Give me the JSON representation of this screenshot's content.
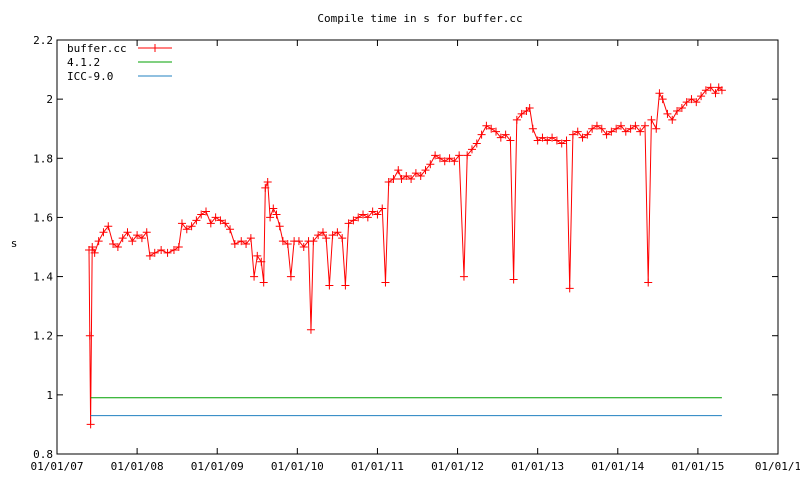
{
  "chart_data": {
    "type": "line",
    "title": "Compile time in s for buffer.cc",
    "xlabel": "",
    "ylabel": "s",
    "ylim": [
      0.8,
      2.2
    ],
    "yticks": [
      "0.8",
      "1",
      "1.2",
      "1.4",
      "1.6",
      "1.8",
      "2",
      "2.2"
    ],
    "xlim": [
      2007.0,
      2016.0
    ],
    "xticks": [
      {
        "label": "01/01/07",
        "x": 2007.0
      },
      {
        "label": "01/01/08",
        "x": 2008.0
      },
      {
        "label": "01/01/09",
        "x": 2009.0
      },
      {
        "label": "01/01/10",
        "x": 2010.0
      },
      {
        "label": "01/01/11",
        "x": 2011.0
      },
      {
        "label": "01/01/12",
        "x": 2012.0
      },
      {
        "label": "01/01/13",
        "x": 2013.0
      },
      {
        "label": "01/01/14",
        "x": 2014.0
      },
      {
        "label": "01/01/15",
        "x": 2015.0
      },
      {
        "label": "01/01/1",
        "x": 2016.0
      }
    ],
    "grid": false,
    "legend": "top-left",
    "series": [
      {
        "name": "buffer.cc",
        "color": "#ff0000",
        "marker": "plus",
        "points": [
          [
            2007.4,
            1.49
          ],
          [
            2007.41,
            1.2
          ],
          [
            2007.42,
            0.9
          ],
          [
            2007.44,
            1.5
          ],
          [
            2007.47,
            1.48
          ],
          [
            2007.52,
            1.52
          ],
          [
            2007.58,
            1.55
          ],
          [
            2007.64,
            1.57
          ],
          [
            2007.7,
            1.51
          ],
          [
            2007.76,
            1.5
          ],
          [
            2007.82,
            1.53
          ],
          [
            2007.88,
            1.55
          ],
          [
            2007.94,
            1.52
          ],
          [
            2008.0,
            1.54
          ],
          [
            2008.06,
            1.53
          ],
          [
            2008.12,
            1.55
          ],
          [
            2008.16,
            1.47
          ],
          [
            2008.22,
            1.48
          ],
          [
            2008.3,
            1.49
          ],
          [
            2008.38,
            1.48
          ],
          [
            2008.46,
            1.49
          ],
          [
            2008.52,
            1.5
          ],
          [
            2008.56,
            1.58
          ],
          [
            2008.62,
            1.56
          ],
          [
            2008.68,
            1.57
          ],
          [
            2008.74,
            1.59
          ],
          [
            2008.8,
            1.61
          ],
          [
            2008.86,
            1.62
          ],
          [
            2008.92,
            1.58
          ],
          [
            2008.98,
            1.6
          ],
          [
            2009.04,
            1.59
          ],
          [
            2009.1,
            1.58
          ],
          [
            2009.16,
            1.56
          ],
          [
            2009.22,
            1.51
          ],
          [
            2009.3,
            1.52
          ],
          [
            2009.36,
            1.51
          ],
          [
            2009.42,
            1.53
          ],
          [
            2009.46,
            1.4
          ],
          [
            2009.5,
            1.47
          ],
          [
            2009.55,
            1.45
          ],
          [
            2009.58,
            1.38
          ],
          [
            2009.6,
            1.7
          ],
          [
            2009.63,
            1.72
          ],
          [
            2009.66,
            1.6
          ],
          [
            2009.7,
            1.63
          ],
          [
            2009.74,
            1.61
          ],
          [
            2009.78,
            1.57
          ],
          [
            2009.82,
            1.52
          ],
          [
            2009.88,
            1.51
          ],
          [
            2009.92,
            1.4
          ],
          [
            2009.96,
            1.52
          ],
          [
            2010.02,
            1.52
          ],
          [
            2010.08,
            1.5
          ],
          [
            2010.14,
            1.52
          ],
          [
            2010.17,
            1.22
          ],
          [
            2010.2,
            1.52
          ],
          [
            2010.26,
            1.54
          ],
          [
            2010.32,
            1.55
          ],
          [
            2010.36,
            1.53
          ],
          [
            2010.4,
            1.37
          ],
          [
            2010.44,
            1.54
          ],
          [
            2010.5,
            1.55
          ],
          [
            2010.56,
            1.53
          ],
          [
            2010.6,
            1.37
          ],
          [
            2010.64,
            1.58
          ],
          [
            2010.7,
            1.59
          ],
          [
            2010.76,
            1.6
          ],
          [
            2010.82,
            1.61
          ],
          [
            2010.88,
            1.6
          ],
          [
            2010.94,
            1.62
          ],
          [
            2011.0,
            1.61
          ],
          [
            2011.06,
            1.63
          ],
          [
            2011.1,
            1.38
          ],
          [
            2011.14,
            1.72
          ],
          [
            2011.2,
            1.73
          ],
          [
            2011.26,
            1.76
          ],
          [
            2011.3,
            1.73
          ],
          [
            2011.36,
            1.74
          ],
          [
            2011.42,
            1.73
          ],
          [
            2011.48,
            1.75
          ],
          [
            2011.54,
            1.74
          ],
          [
            2011.6,
            1.76
          ],
          [
            2011.66,
            1.78
          ],
          [
            2011.72,
            1.81
          ],
          [
            2011.78,
            1.8
          ],
          [
            2011.84,
            1.79
          ],
          [
            2011.9,
            1.8
          ],
          [
            2011.96,
            1.79
          ],
          [
            2012.02,
            1.81
          ],
          [
            2012.08,
            1.4
          ],
          [
            2012.12,
            1.81
          ],
          [
            2012.18,
            1.83
          ],
          [
            2012.24,
            1.85
          ],
          [
            2012.3,
            1.88
          ],
          [
            2012.36,
            1.91
          ],
          [
            2012.42,
            1.9
          ],
          [
            2012.48,
            1.89
          ],
          [
            2012.54,
            1.87
          ],
          [
            2012.6,
            1.88
          ],
          [
            2012.66,
            1.86
          ],
          [
            2012.7,
            1.39
          ],
          [
            2012.74,
            1.93
          ],
          [
            2012.8,
            1.95
          ],
          [
            2012.86,
            1.96
          ],
          [
            2012.9,
            1.97
          ],
          [
            2012.94,
            1.9
          ],
          [
            2013.0,
            1.86
          ],
          [
            2013.06,
            1.87
          ],
          [
            2013.12,
            1.86
          ],
          [
            2013.18,
            1.87
          ],
          [
            2013.24,
            1.86
          ],
          [
            2013.3,
            1.85
          ],
          [
            2013.36,
            1.86
          ],
          [
            2013.4,
            1.36
          ],
          [
            2013.44,
            1.88
          ],
          [
            2013.5,
            1.89
          ],
          [
            2013.56,
            1.87
          ],
          [
            2013.62,
            1.88
          ],
          [
            2013.68,
            1.9
          ],
          [
            2013.74,
            1.91
          ],
          [
            2013.8,
            1.9
          ],
          [
            2013.86,
            1.88
          ],
          [
            2013.92,
            1.89
          ],
          [
            2013.98,
            1.9
          ],
          [
            2014.04,
            1.91
          ],
          [
            2014.1,
            1.89
          ],
          [
            2014.16,
            1.9
          ],
          [
            2014.22,
            1.91
          ],
          [
            2014.28,
            1.89
          ],
          [
            2014.34,
            1.91
          ],
          [
            2014.38,
            1.38
          ],
          [
            2014.42,
            1.93
          ],
          [
            2014.48,
            1.9
          ],
          [
            2014.52,
            2.02
          ],
          [
            2014.56,
            2.0
          ],
          [
            2014.62,
            1.95
          ],
          [
            2014.68,
            1.93
          ],
          [
            2014.74,
            1.96
          ],
          [
            2014.8,
            1.97
          ],
          [
            2014.86,
            1.99
          ],
          [
            2014.92,
            2.0
          ],
          [
            2014.98,
            1.99
          ],
          [
            2015.04,
            2.01
          ],
          [
            2015.1,
            2.03
          ],
          [
            2015.16,
            2.04
          ],
          [
            2015.22,
            2.02
          ],
          [
            2015.26,
            2.04
          ],
          [
            2015.3,
            2.03
          ]
        ]
      },
      {
        "name": "4.1.2",
        "color": "#00a000",
        "marker": "none",
        "points": [
          [
            2007.42,
            0.99
          ],
          [
            2015.3,
            0.99
          ]
        ]
      },
      {
        "name": "ICC-9.0",
        "color": "#2080c0",
        "marker": "none",
        "points": [
          [
            2007.42,
            0.93
          ],
          [
            2015.3,
            0.93
          ]
        ]
      }
    ]
  }
}
